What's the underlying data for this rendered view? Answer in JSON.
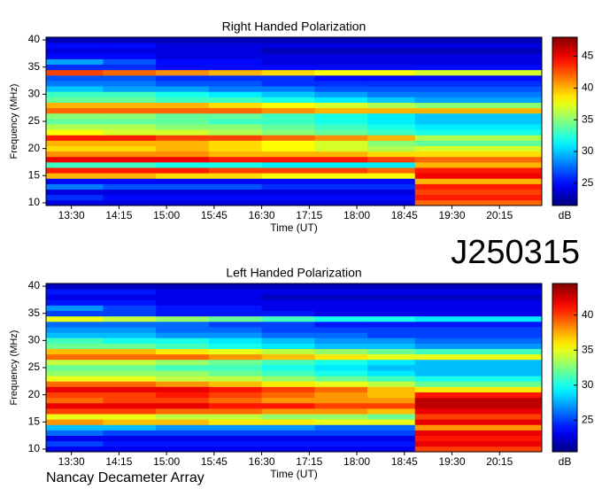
{
  "chart_data": [
    {
      "type": "heatmap",
      "title": "Right Handed Polarization",
      "xlabel": "Time (UT)",
      "ylabel": "Frequency (MHz)",
      "colorbar_label": "dB",
      "colormap": "jet",
      "x": [
        786,
        840,
        890,
        940,
        990,
        1040,
        1090,
        1135,
        1255
      ],
      "y": [
        10,
        11,
        12,
        13,
        14,
        15,
        16,
        17,
        18,
        19,
        20,
        21,
        22,
        23,
        24,
        25,
        26,
        27,
        28,
        29,
        30,
        31,
        32,
        33,
        34,
        35,
        36,
        37,
        38,
        39,
        40
      ],
      "z": [
        [
          24,
          24,
          24,
          24,
          24,
          24,
          24,
          42
        ],
        [
          26,
          25,
          25,
          25,
          25,
          25,
          25,
          44
        ],
        [
          24,
          24,
          24,
          24,
          24,
          24,
          24,
          43
        ],
        [
          28,
          27,
          27,
          27,
          26,
          26,
          26,
          44
        ],
        [
          25,
          25,
          25,
          25,
          25,
          25,
          25,
          40
        ],
        [
          40,
          40,
          39,
          39,
          38,
          38,
          38,
          45
        ],
        [
          44,
          44,
          44,
          43,
          43,
          43,
          42,
          44
        ],
        [
          33,
          33,
          32,
          32,
          31,
          31,
          31,
          40
        ],
        [
          45,
          45,
          45,
          44,
          44,
          44,
          43,
          42
        ],
        [
          41,
          41,
          41,
          40,
          40,
          40,
          39,
          39
        ],
        [
          39,
          39,
          40,
          39,
          38,
          37,
          36,
          37
        ],
        [
          40,
          40,
          40,
          39,
          38,
          37,
          35,
          34
        ],
        [
          44,
          44,
          43,
          43,
          42,
          41,
          40,
          36
        ],
        [
          38,
          37,
          37,
          36,
          35,
          34,
          33,
          32
        ],
        [
          36,
          36,
          35,
          35,
          34,
          33,
          32,
          31
        ],
        [
          34,
          34,
          34,
          33,
          33,
          32,
          31,
          30
        ],
        [
          35,
          35,
          34,
          34,
          33,
          32,
          31,
          30
        ],
        [
          42,
          42,
          42,
          42,
          41,
          40,
          40,
          40
        ],
        [
          40,
          40,
          40,
          39,
          38,
          37,
          36,
          35
        ],
        [
          34,
          34,
          33,
          33,
          32,
          31,
          30,
          29
        ],
        [
          33,
          33,
          32,
          31,
          30,
          29,
          28,
          28
        ],
        [
          30,
          29,
          29,
          28,
          28,
          27,
          27,
          27
        ],
        [
          28,
          28,
          27,
          27,
          26,
          26,
          26,
          26
        ],
        [
          27,
          27,
          26,
          26,
          26,
          25,
          25,
          25
        ],
        [
          43,
          42,
          41,
          40,
          39,
          38,
          38,
          37
        ],
        [
          26,
          26,
          25,
          25,
          25,
          25,
          25,
          25
        ],
        [
          29,
          27,
          25,
          25,
          24,
          24,
          24,
          24
        ],
        [
          25,
          25,
          24,
          24,
          24,
          24,
          24,
          24
        ],
        [
          24,
          24,
          24,
          24,
          23,
          23,
          23,
          23
        ],
        [
          25,
          25,
          24,
          24,
          24,
          24,
          24,
          24
        ],
        [
          23,
          23,
          23,
          23,
          23,
          23,
          23,
          23
        ]
      ],
      "xlim": [
        786,
        1255
      ],
      "xticks": [
        {
          "value": 810,
          "label": "13:30"
        },
        {
          "value": 855,
          "label": "14:15"
        },
        {
          "value": 900,
          "label": "15:00"
        },
        {
          "value": 945,
          "label": "15:45"
        },
        {
          "value": 990,
          "label": "16:30"
        },
        {
          "value": 1035,
          "label": "17:15"
        },
        {
          "value": 1080,
          "label": "18:00"
        },
        {
          "value": 1125,
          "label": "18:45"
        },
        {
          "value": 1170,
          "label": "19:30"
        },
        {
          "value": 1215,
          "label": "20:15"
        }
      ],
      "ylim": [
        9.5,
        40.5
      ],
      "yticks": [
        10,
        15,
        20,
        25,
        30,
        35,
        40
      ],
      "clim": [
        21.5,
        48
      ],
      "cticks": [
        25,
        30,
        35,
        40,
        45
      ]
    },
    {
      "type": "heatmap",
      "title": "Left Handed Polarization",
      "xlabel": "Time (UT)",
      "ylabel": "Frequency (MHz)",
      "colorbar_label": "dB",
      "colormap": "jet",
      "x": [
        786,
        840,
        890,
        940,
        990,
        1040,
        1090,
        1135,
        1255
      ],
      "y": [
        10,
        11,
        12,
        13,
        14,
        15,
        16,
        17,
        18,
        19,
        20,
        21,
        22,
        23,
        24,
        25,
        26,
        27,
        28,
        29,
        30,
        31,
        32,
        33,
        34,
        35,
        36,
        37,
        38,
        39,
        40
      ],
      "z": [
        [
          23,
          23,
          23,
          23,
          23,
          23,
          23,
          40
        ],
        [
          25,
          24,
          24,
          24,
          24,
          24,
          24,
          42
        ],
        [
          23,
          23,
          23,
          23,
          23,
          23,
          23,
          41
        ],
        [
          26,
          25,
          25,
          25,
          25,
          25,
          25,
          42
        ],
        [
          28,
          28,
          27,
          27,
          27,
          26,
          26,
          38
        ],
        [
          38,
          37,
          37,
          36,
          36,
          35,
          35,
          42
        ],
        [
          35,
          35,
          34,
          34,
          33,
          33,
          32,
          40
        ],
        [
          40,
          40,
          39,
          39,
          38,
          38,
          37,
          42
        ],
        [
          42,
          42,
          42,
          41,
          41,
          40,
          40,
          43
        ],
        [
          39,
          40,
          40,
          39,
          38,
          38,
          38,
          43
        ],
        [
          40,
          40,
          41,
          40,
          39,
          38,
          37,
          41
        ],
        [
          42,
          42,
          42,
          41,
          40,
          39,
          37,
          36
        ],
        [
          39,
          39,
          38,
          37,
          36,
          35,
          34,
          32
        ],
        [
          35,
          35,
          34,
          34,
          33,
          32,
          31,
          30
        ],
        [
          33,
          33,
          33,
          32,
          31,
          30,
          29,
          28
        ],
        [
          32,
          32,
          31,
          31,
          30,
          29,
          28,
          28
        ],
        [
          34,
          34,
          33,
          32,
          31,
          30,
          29,
          28
        ],
        [
          39,
          39,
          39,
          38,
          37,
          36,
          35,
          35
        ],
        [
          37,
          37,
          36,
          35,
          34,
          33,
          32,
          31
        ],
        [
          32,
          32,
          31,
          30,
          29,
          28,
          28,
          27
        ],
        [
          31,
          30,
          30,
          29,
          28,
          27,
          27,
          26
        ],
        [
          28,
          28,
          27,
          27,
          26,
          26,
          25,
          25
        ],
        [
          27,
          27,
          26,
          26,
          25,
          25,
          25,
          25
        ],
        [
          26,
          26,
          26,
          25,
          25,
          24,
          24,
          24
        ],
        [
          35,
          34,
          33,
          32,
          31,
          30,
          30,
          29
        ],
        [
          25,
          25,
          24,
          24,
          24,
          23,
          23,
          23
        ],
        [
          27,
          25,
          24,
          24,
          23,
          23,
          23,
          23
        ],
        [
          24,
          24,
          23,
          23,
          23,
          23,
          23,
          23
        ],
        [
          23,
          23,
          23,
          23,
          22,
          22,
          22,
          22
        ],
        [
          24,
          24,
          23,
          23,
          23,
          23,
          23,
          23
        ],
        [
          22,
          22,
          22,
          22,
          22,
          22,
          22,
          22
        ]
      ],
      "xlim": [
        786,
        1255
      ],
      "xticks": [
        {
          "value": 810,
          "label": "13:30"
        },
        {
          "value": 855,
          "label": "14:15"
        },
        {
          "value": 900,
          "label": "15:00"
        },
        {
          "value": 945,
          "label": "15:45"
        },
        {
          "value": 990,
          "label": "16:30"
        },
        {
          "value": 1035,
          "label": "17:15"
        },
        {
          "value": 1080,
          "label": "18:00"
        },
        {
          "value": 1125,
          "label": "18:45"
        },
        {
          "value": 1170,
          "label": "19:30"
        },
        {
          "value": 1215,
          "label": "20:15"
        }
      ],
      "ylim": [
        9.5,
        40.5
      ],
      "yticks": [
        10,
        15,
        20,
        25,
        30,
        35,
        40
      ],
      "clim": [
        20.5,
        44.5
      ],
      "cticks": [
        25,
        30,
        35,
        40
      ]
    }
  ],
  "figure_id": "J250315",
  "credit": "Nancay Decameter Array"
}
